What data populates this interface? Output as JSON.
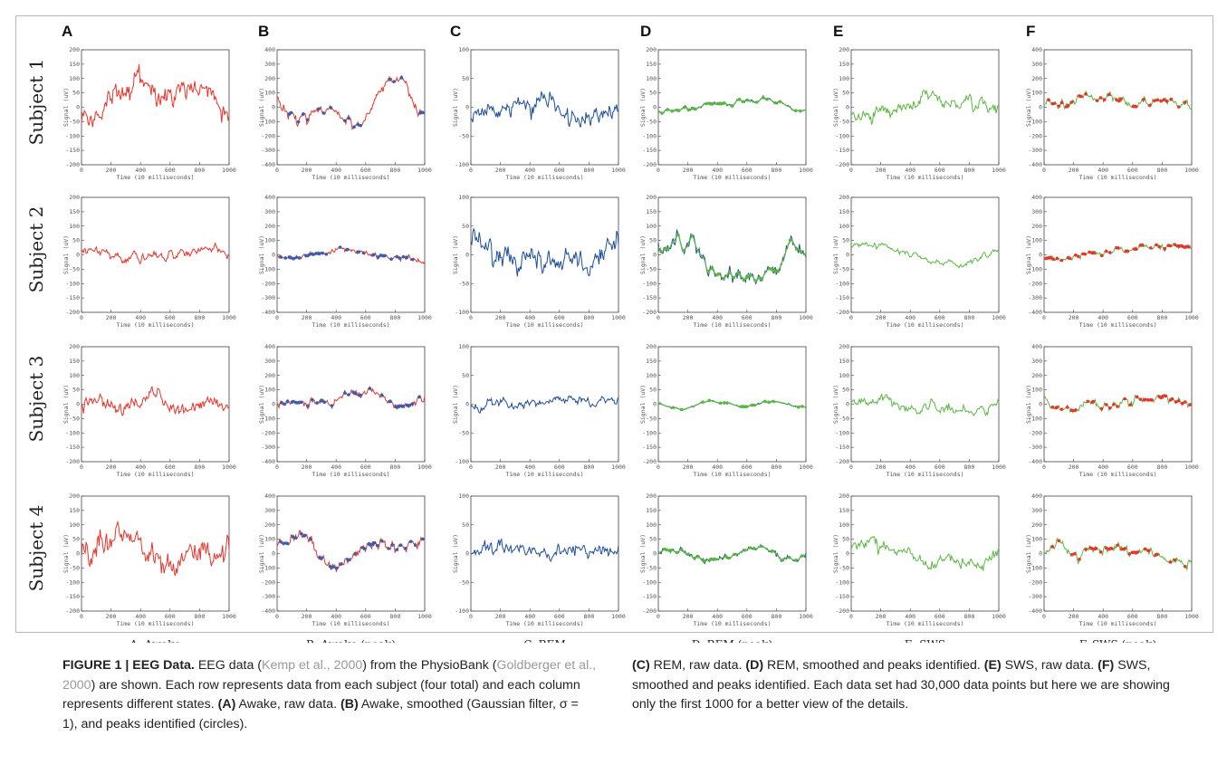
{
  "figure": {
    "columns": [
      {
        "letter": "A",
        "caption": "A. Awake"
      },
      {
        "letter": "B",
        "caption": "B. Awake (peak)"
      },
      {
        "letter": "C",
        "caption": "C. REM"
      },
      {
        "letter": "D",
        "caption": "D. REM (peak)"
      },
      {
        "letter": "E",
        "caption": "E. SWS"
      },
      {
        "letter": "F",
        "caption": "F. SWS (peak)"
      }
    ],
    "rows": [
      "Subject 1",
      "Subject 2",
      "Subject 3",
      "Subject 4"
    ],
    "xlabel": "Time (10 milliseconds)",
    "ylabel": "Signal (uV)"
  },
  "chart_data": {
    "type": "line",
    "x_ticks": [
      0,
      200,
      400,
      600,
      800,
      1000
    ],
    "xlim": [
      0,
      1000
    ],
    "columns": [
      {
        "column": "A",
        "ylim": [
          -200,
          200
        ],
        "y_ticks": [
          -200,
          -150,
          -100,
          -50,
          0,
          50,
          100,
          150,
          200
        ],
        "colors": {
          "raw": "#e8352b"
        },
        "peaks_shown": false
      },
      {
        "column": "B",
        "ylim": [
          -400,
          400
        ],
        "y_ticks": [
          -400,
          -300,
          -200,
          -100,
          0,
          100,
          200,
          300,
          400
        ],
        "colors": {
          "raw": "#e8352b",
          "peaks": "#3a5fad"
        },
        "peaks_shown": true
      },
      {
        "column": "C",
        "ylim": [
          -100,
          100
        ],
        "y_ticks": [
          -100,
          -50,
          0,
          50,
          100
        ],
        "colors": {
          "raw": "#1f4e9a"
        },
        "peaks_shown": false
      },
      {
        "column": "D",
        "ylim": [
          -200,
          200
        ],
        "y_ticks": [
          -200,
          -150,
          -100,
          -50,
          0,
          50,
          100,
          150,
          200
        ],
        "colors": {
          "raw": "#1f4e9a",
          "smooth": "#5ab841",
          "peaks": "#5ab841"
        },
        "peaks_shown": true
      },
      {
        "column": "E",
        "ylim": [
          -200,
          200
        ],
        "y_ticks": [
          -200,
          -150,
          -100,
          -50,
          0,
          50,
          100,
          150,
          200
        ],
        "colors": {
          "raw": "#5ab841"
        },
        "peaks_shown": false
      },
      {
        "column": "F",
        "ylim": [
          -400,
          400
        ],
        "y_ticks": [
          -400,
          -300,
          -200,
          -100,
          0,
          100,
          200,
          300,
          400
        ],
        "colors": {
          "raw": "#5ab841",
          "peaks": "#e8352b"
        },
        "peaks_shown": true
      }
    ],
    "approx_amplitude_per_row": {
      "A": [
        150,
        40,
        60,
        110
      ],
      "B": [
        220,
        60,
        120,
        160
      ],
      "C": [
        35,
        45,
        15,
        25
      ],
      "D": [
        40,
        100,
        20,
        35
      ],
      "E": [
        60,
        45,
        40,
        60
      ],
      "F": [
        110,
        80,
        70,
        110
      ]
    }
  },
  "caption": {
    "label": "FIGURE 1 | EEG Data.",
    "part1": " EEG data (",
    "ref1": "Kemp et al., 2000",
    "part2": ") from the PhysioBank (",
    "ref2": "Goldberger et al., 2000",
    "part3": ") are shown. Each row represents data from each subject (four total) and each column represents different states. ",
    "labelA": "(A)",
    "partA": " Awake, raw data. ",
    "labelB": "(B)",
    "partB": " Awake, smoothed (Gaussian filter, σ = 1), and peaks identified (circles). ",
    "labelC": "(C)",
    "partC": " REM, raw data. ",
    "labelD": "(D)",
    "partD": " REM, smoothed and peaks identified. ",
    "labelE": "(E)",
    "partE": " SWS, raw data. ",
    "labelF": "(F)",
    "partF": " SWS, smoothed and peaks identified. Each data set had 30,000 data points but here we are showing only the first 1000 for a better view of the details."
  }
}
